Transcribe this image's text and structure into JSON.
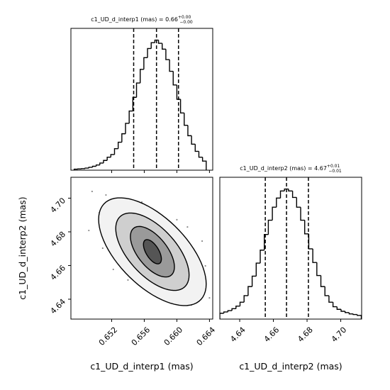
{
  "chart_data": [
    {
      "type": "histogram",
      "title": {
        "text": "c1_UD_d_interp1 (mas) = 0.66",
        "plus": "+0.00",
        "minus": "−0.00"
      },
      "bins": [
        0.6474,
        0.64785,
        0.6483,
        0.64875,
        0.6492,
        0.64965,
        0.6501,
        0.65055,
        0.651,
        0.65145,
        0.6519,
        0.65235,
        0.6528,
        0.65325,
        0.6537,
        0.65415,
        0.6546,
        0.65505,
        0.6555,
        0.65595,
        0.6564,
        0.65685,
        0.6573,
        0.65775,
        0.6582,
        0.65865,
        0.6591,
        0.65955,
        0.66,
        0.66045,
        0.6609,
        0.66135,
        0.6618,
        0.66225,
        0.6627,
        0.66315,
        0.6636
      ],
      "counts": [
        8,
        10,
        12,
        16,
        22,
        30,
        40,
        55,
        75,
        100,
        120,
        165,
        215,
        280,
        360,
        455,
        560,
        670,
        775,
        865,
        935,
        980,
        1000,
        975,
        930,
        850,
        760,
        655,
        545,
        440,
        345,
        265,
        200,
        145,
        100,
        70
      ],
      "quantiles": [
        0.6547,
        0.6575,
        0.6602
      ],
      "color": "#000000",
      "xlim": [
        0.647,
        0.6644
      ],
      "ylim": [
        0,
        1090
      ],
      "xticks": [
        0.652,
        0.656,
        {
          "value": 0.66,
          "label": "0.660"
        },
        0.664
      ]
    },
    {
      "type": "contour",
      "xlabel": "c1_UD_d_interp1 (mas)",
      "ylabel": "c1_UD_d_interp2 (mas)",
      "center": [
        0.657,
        4.6682
      ],
      "rho": -0.6,
      "contours": [
        {
          "sx": 0.0066,
          "sy": 0.032
        },
        {
          "sx": 0.0045,
          "sy": 0.023
        },
        {
          "sx": 0.0027,
          "sy": 0.015
        },
        {
          "sx": 0.0011,
          "sy": 0.0072
        }
      ],
      "fill_colors": [
        "#f2f2f2",
        "#cfcfcf",
        "#9a9a9a",
        "#555555"
      ],
      "point_color": "#8a8a8a",
      "points": {
        "x": [
          0.6496,
          0.6513,
          0.6492,
          0.6505,
          0.6557,
          0.6566,
          0.6613,
          0.6631,
          0.6635,
          0.6618,
          0.6592,
          0.6574,
          0.654,
          0.6522,
          0.664,
          0.66,
          0.6509,
          0.6622
        ],
        "y": [
          4.704,
          4.7019,
          4.6808,
          4.6914,
          4.6977,
          4.6914,
          4.6829,
          4.6745,
          4.6598,
          4.6366,
          4.6387,
          4.6429,
          4.6514,
          4.6577,
          4.6408,
          4.6872,
          4.6703,
          4.645
        ]
      },
      "xlim": [
        0.647,
        0.6644
      ],
      "ylim": [
        4.6282,
        4.7124
      ],
      "xticks": [
        0.652,
        0.656,
        {
          "value": 0.66,
          "label": "0.660"
        },
        0.664
      ],
      "yticks": [
        4.64,
        4.66,
        4.68,
        {
          "value": 4.7,
          "label": "4.70"
        }
      ]
    },
    {
      "type": "histogram",
      "title": {
        "text": "c1_UD_d_interp2 (mas) = 4.67",
        "plus": "+0.01",
        "minus": "−0.01"
      },
      "xlabel": "c1_UD_d_interp2 (mas)",
      "bins": [
        4.6282,
        4.6306,
        4.633,
        4.6354,
        4.6378,
        4.6402,
        4.6426,
        4.645,
        4.6474,
        4.6498,
        4.6522,
        4.6546,
        4.657,
        4.6594,
        4.6618,
        4.6642,
        4.6666,
        4.669,
        4.6714,
        4.6738,
        4.6762,
        4.6786,
        4.681,
        4.6834,
        4.6858,
        4.6882,
        4.6906,
        4.693,
        4.6954,
        4.6978,
        4.7002,
        4.7026,
        4.705,
        4.7074,
        4.7098,
        4.7122
      ],
      "counts": [
        45,
        55,
        65,
        80,
        100,
        130,
        180,
        250,
        330,
        430,
        530,
        650,
        760,
        860,
        930,
        985,
        1000,
        985,
        935,
        860,
        760,
        655,
        540,
        435,
        335,
        250,
        180,
        130,
        95,
        75,
        60,
        50,
        40,
        35,
        28
      ],
      "quantiles": [
        4.6552,
        4.6678,
        4.6808
      ],
      "color": "#000000",
      "xlim": [
        4.6282,
        4.7124
      ],
      "ylim": [
        0,
        1090
      ],
      "xticks": [
        4.64,
        4.66,
        4.68,
        {
          "value": 4.7,
          "label": "4.70"
        }
      ]
    }
  ]
}
